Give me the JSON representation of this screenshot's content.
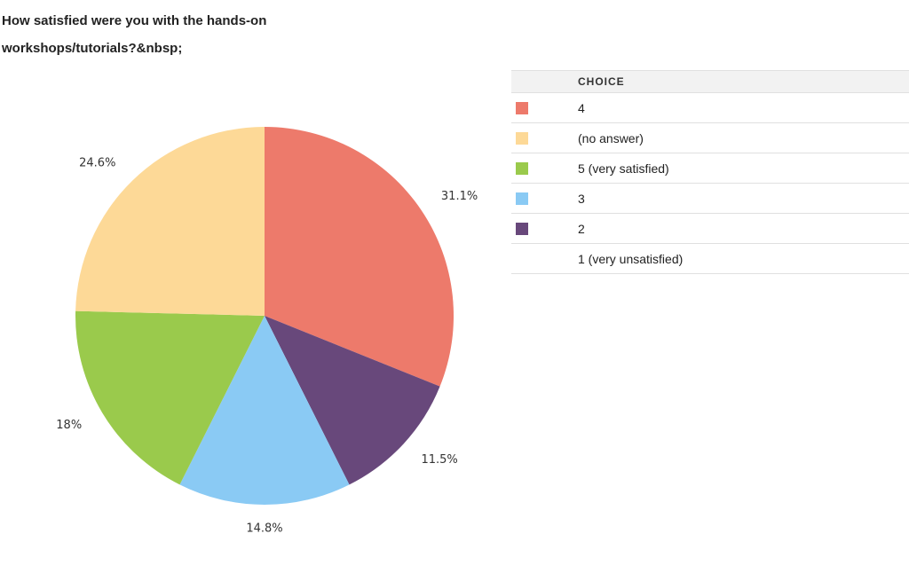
{
  "question": {
    "title": "How satisfied were you with the hands-on workshops/tutorials?&nbsp;"
  },
  "table": {
    "header": "CHOICE",
    "rows": [
      {
        "label": "4",
        "color": "#ed7a6b"
      },
      {
        "label": "(no answer)",
        "color": "#fdd997"
      },
      {
        "label": "5 (very satisfied)",
        "color": "#9aca4c"
      },
      {
        "label": "3",
        "color": "#8acaf4"
      },
      {
        "label": "2",
        "color": "#68487b"
      },
      {
        "label": "1 (very unsatisfied)",
        "color": null
      }
    ]
  },
  "chart_data": {
    "type": "pie",
    "title": "How satisfied were you with the hands-on workshops/tutorials?&nbsp;",
    "slices": [
      {
        "name": "4",
        "value": 31.1,
        "label": "31.1%",
        "color": "#ed7a6b"
      },
      {
        "name": "2",
        "value": 11.5,
        "label": "11.5%",
        "color": "#68487b"
      },
      {
        "name": "3",
        "value": 14.8,
        "label": "14.8%",
        "color": "#8acaf4"
      },
      {
        "name": "5 (very satisfied)",
        "value": 18,
        "label": "18%",
        "color": "#9aca4c"
      },
      {
        "name": "(no answer)",
        "value": 24.6,
        "label": "24.6%",
        "color": "#fdd997"
      }
    ],
    "start_angle": "12 o'clock",
    "direction": "clockwise",
    "legend": "table-right"
  }
}
